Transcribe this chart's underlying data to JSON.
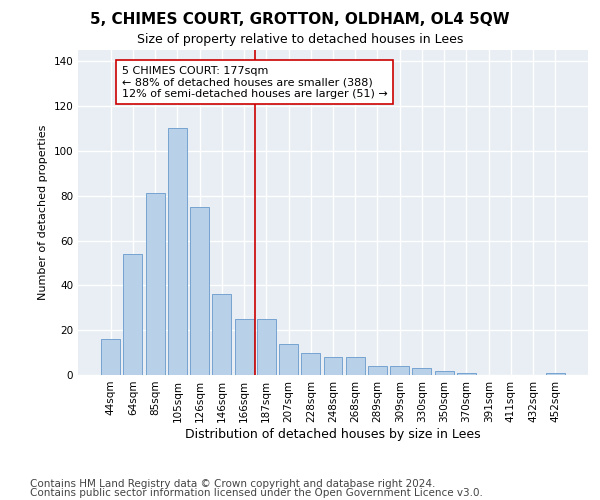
{
  "title": "5, CHIMES COURT, GROTTON, OLDHAM, OL4 5QW",
  "subtitle": "Size of property relative to detached houses in Lees",
  "xlabel": "Distribution of detached houses by size in Lees",
  "ylabel": "Number of detached properties",
  "categories": [
    "44sqm",
    "64sqm",
    "85sqm",
    "105sqm",
    "126sqm",
    "146sqm",
    "166sqm",
    "187sqm",
    "207sqm",
    "228sqm",
    "248sqm",
    "268sqm",
    "289sqm",
    "309sqm",
    "330sqm",
    "350sqm",
    "370sqm",
    "391sqm",
    "411sqm",
    "432sqm",
    "452sqm"
  ],
  "values": [
    16,
    54,
    81,
    110,
    75,
    36,
    25,
    25,
    14,
    10,
    8,
    8,
    4,
    4,
    3,
    2,
    1,
    0,
    0,
    0,
    1
  ],
  "bar_color": "#b8d0e8",
  "bar_edge_color": "#6699cc",
  "highlight_line_index": 7,
  "highlight_line_color": "#cc0000",
  "annotation_text": "5 CHIMES COURT: 177sqm\n← 88% of detached houses are smaller (388)\n12% of semi-detached houses are larger (51) →",
  "annotation_box_color": "#ffffff",
  "annotation_box_edge_color": "#cc0000",
  "ylim": [
    0,
    145
  ],
  "yticks": [
    0,
    20,
    40,
    60,
    80,
    100,
    120,
    140
  ],
  "footer_line1": "Contains HM Land Registry data © Crown copyright and database right 2024.",
  "footer_line2": "Contains public sector information licensed under the Open Government Licence v3.0.",
  "background_color": "#ffffff",
  "plot_bg_color": "#e8eef4",
  "grid_color": "#ffffff",
  "title_fontsize": 11,
  "subtitle_fontsize": 9,
  "annotation_fontsize": 8,
  "ylabel_fontsize": 8,
  "xlabel_fontsize": 9,
  "footer_fontsize": 7.5,
  "tick_fontsize": 7.5
}
